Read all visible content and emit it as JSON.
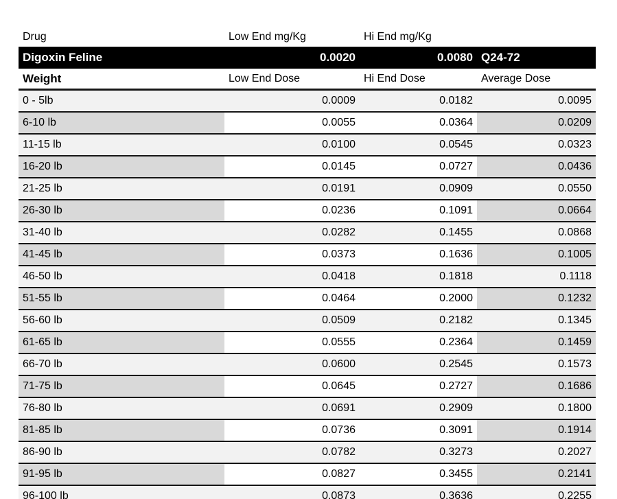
{
  "table": {
    "top_header": {
      "drug_label": "Drug",
      "low_end_label": "Low End mg/Kg",
      "hi_end_label": "Hi End mg/Kg"
    },
    "drug_row": {
      "name": "Digoxin Feline",
      "low_end_mg_kg": "0.0020",
      "hi_end_mg_kg": "0.0080",
      "frequency": "Q24-72"
    },
    "dose_header": {
      "weight_label": "Weight",
      "low_label": "Low End Dose",
      "hi_label": "Hi End Dose",
      "avg_label": "Average Dose"
    },
    "rows": [
      {
        "weight": "0 - 5lb",
        "low": "0.0009",
        "hi": "0.0182",
        "avg": "0.0095"
      },
      {
        "weight": "6-10 lb",
        "low": "0.0055",
        "hi": "0.0364",
        "avg": "0.0209"
      },
      {
        "weight": "11-15 lb",
        "low": "0.0100",
        "hi": "0.0545",
        "avg": "0.0323"
      },
      {
        "weight": "16-20 lb",
        "low": "0.0145",
        "hi": "0.0727",
        "avg": "0.0436"
      },
      {
        "weight": "21-25 lb",
        "low": "0.0191",
        "hi": "0.0909",
        "avg": "0.0550"
      },
      {
        "weight": "26-30 lb",
        "low": "0.0236",
        "hi": "0.1091",
        "avg": "0.0664"
      },
      {
        "weight": "31-40 lb",
        "low": "0.0282",
        "hi": "0.1455",
        "avg": "0.0868"
      },
      {
        "weight": "41-45 lb",
        "low": "0.0373",
        "hi": "0.1636",
        "avg": "0.1005"
      },
      {
        "weight": "46-50 lb",
        "low": "0.0418",
        "hi": "0.1818",
        "avg": "0.1118"
      },
      {
        "weight": "51-55 lb",
        "low": "0.0464",
        "hi": "0.2000",
        "avg": "0.1232"
      },
      {
        "weight": "56-60 lb",
        "low": "0.0509",
        "hi": "0.2182",
        "avg": "0.1345"
      },
      {
        "weight": "61-65 lb",
        "low": "0.0555",
        "hi": "0.2364",
        "avg": "0.1459"
      },
      {
        "weight": "66-70 lb",
        "low": "0.0600",
        "hi": "0.2545",
        "avg": "0.1573"
      },
      {
        "weight": "71-75 lb",
        "low": "0.0645",
        "hi": "0.2727",
        "avg": "0.1686"
      },
      {
        "weight": "76-80 lb",
        "low": "0.0691",
        "hi": "0.2909",
        "avg": "0.1800"
      },
      {
        "weight": "81-85 lb",
        "low": "0.0736",
        "hi": "0.3091",
        "avg": "0.1914"
      },
      {
        "weight": "86-90 lb",
        "low": "0.0782",
        "hi": "0.3273",
        "avg": "0.2027"
      },
      {
        "weight": "91-95 lb",
        "low": "0.0827",
        "hi": "0.3455",
        "avg": "0.2141"
      },
      {
        "weight": "96-100 lb",
        "low": "0.0873",
        "hi": "0.3636",
        "avg": "0.2255"
      }
    ]
  },
  "colors": {
    "band_background": "#000000",
    "band_text": "#ffffff",
    "row_light": "#f2f2f2",
    "row_shaded": "#d9d9d9",
    "row_white": "#ffffff",
    "border": "#151515"
  }
}
